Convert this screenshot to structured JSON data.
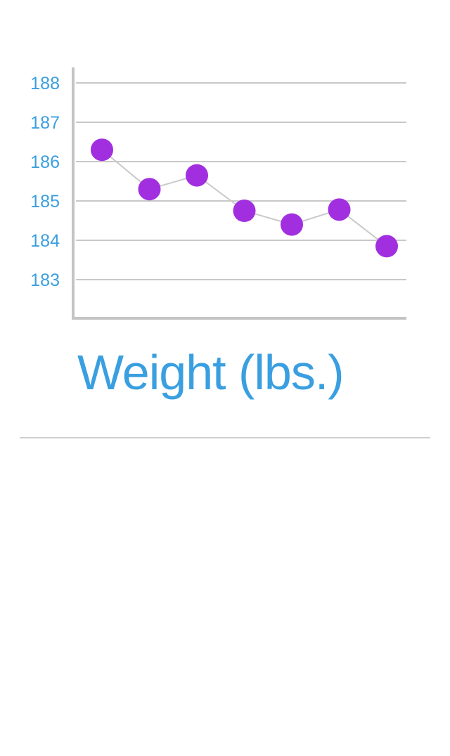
{
  "chart_data": {
    "type": "line",
    "title": "Weight (lbs.)",
    "x": [
      1,
      2,
      3,
      4,
      5,
      6,
      7
    ],
    "series": [
      {
        "values": [
          186.3,
          185.3,
          185.65,
          184.75,
          184.4,
          184.78,
          183.85
        ]
      }
    ],
    "yticks": [
      "183",
      "184",
      "185",
      "186",
      "187",
      "188"
    ],
    "ylim": [
      182.1,
      188.4
    ],
    "grid": true,
    "legend": "none",
    "colors": {
      "point": "#a12fe0",
      "line": "#c9c9c9",
      "grid": "#c8c8c8",
      "axis": "#c4c4c4",
      "tick_text": "#3a9fe0",
      "title_text": "#3a9fe0"
    }
  }
}
